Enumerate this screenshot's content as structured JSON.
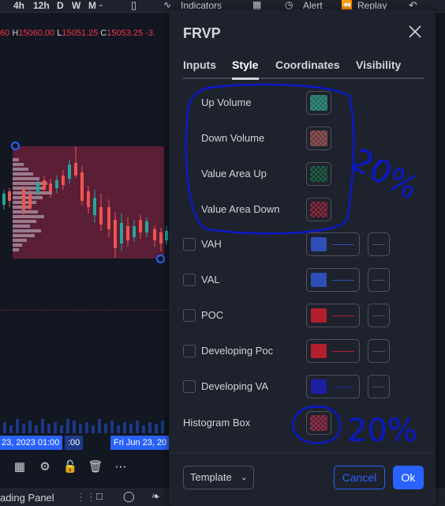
{
  "toolbar": {
    "timeframes": [
      "4h",
      "12h",
      "D",
      "W",
      "M"
    ],
    "indicators_label": "Indicators",
    "alert_label": "Alert",
    "replay_label": "Replay"
  },
  "chart": {
    "ohlc_prefix": "60",
    "high_label": "H",
    "high_value": "15060.00",
    "low_label": "L",
    "low_value": "15051.25",
    "close_label": "C",
    "close_value": "15053.25",
    "change": "-3.",
    "time_axis_left": "23, 2023  01:00",
    "time_axis_mid": ":00",
    "time_axis_right": "Fri Jun 23, 20",
    "bottom_panel_label": "ading Panel"
  },
  "dialog": {
    "title": "FRVP",
    "tabs": [
      {
        "label": "Inputs",
        "active": false
      },
      {
        "label": "Style",
        "active": true
      },
      {
        "label": "Coordinates",
        "active": false
      },
      {
        "label": "Visibility",
        "active": false
      }
    ],
    "rows": {
      "up_volume": {
        "label": "Up Volume",
        "color": "#1f6f63"
      },
      "down_volume": {
        "label": "Down Volume",
        "color": "#6e3a3d"
      },
      "value_area_up": {
        "label": "Value Area Up",
        "color": "#0d3f2e"
      },
      "value_area_down": {
        "label": "Value Area Down",
        "color": "#5c1627"
      },
      "vah": {
        "label": "VAH",
        "color": "#2e4fb5"
      },
      "val": {
        "label": "VAL",
        "color": "#2e4fb5"
      },
      "poc": {
        "label": "POC",
        "color": "#b2202b"
      },
      "developing_poc": {
        "label": "Developing Poc",
        "color": "#b2202b"
      },
      "developing_va": {
        "label": "Developing VA",
        "color": "#1d1fa3"
      },
      "histogram_box": {
        "label": "Histogram Box",
        "color": "#6a1a30"
      }
    },
    "footer": {
      "template_label": "Template",
      "cancel_label": "Cancel",
      "ok_label": "Ok"
    }
  },
  "annotations": {
    "note_value_area": "20%",
    "note_histogram": "20%"
  },
  "colors": {
    "accent": "#2962ff",
    "background": "#131722",
    "dialog_bg": "#1e222d",
    "annotation_ink": "#0a18c8"
  }
}
